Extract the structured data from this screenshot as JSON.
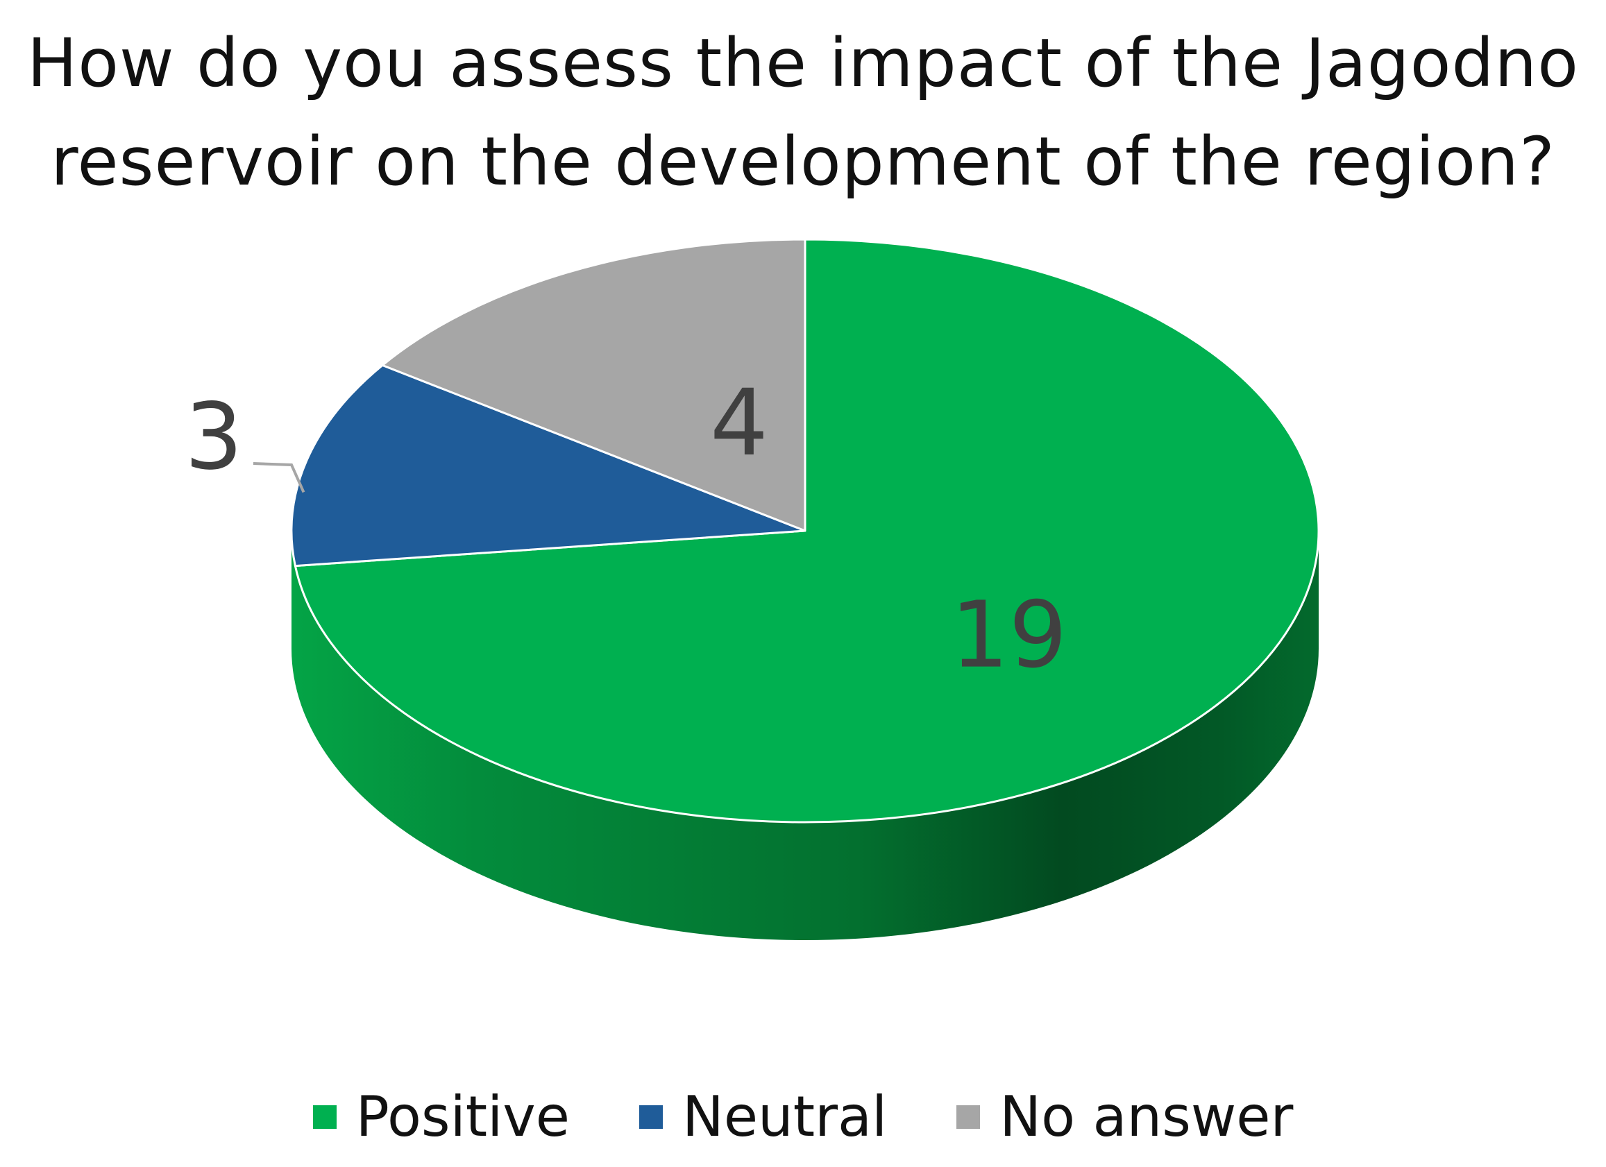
{
  "chart_data": {
    "type": "pie",
    "title_lines": [
      "How do you assess the impact of the Jagodno",
      "reservoir on the development of the region?"
    ],
    "categories": [
      "Positive",
      "Neutral",
      "No answer"
    ],
    "values": [
      19,
      3,
      4
    ],
    "colors": [
      "#00B050",
      "#1F5C99",
      "#A6A6A6"
    ],
    "style": "3d",
    "legend_position": "bottom"
  }
}
